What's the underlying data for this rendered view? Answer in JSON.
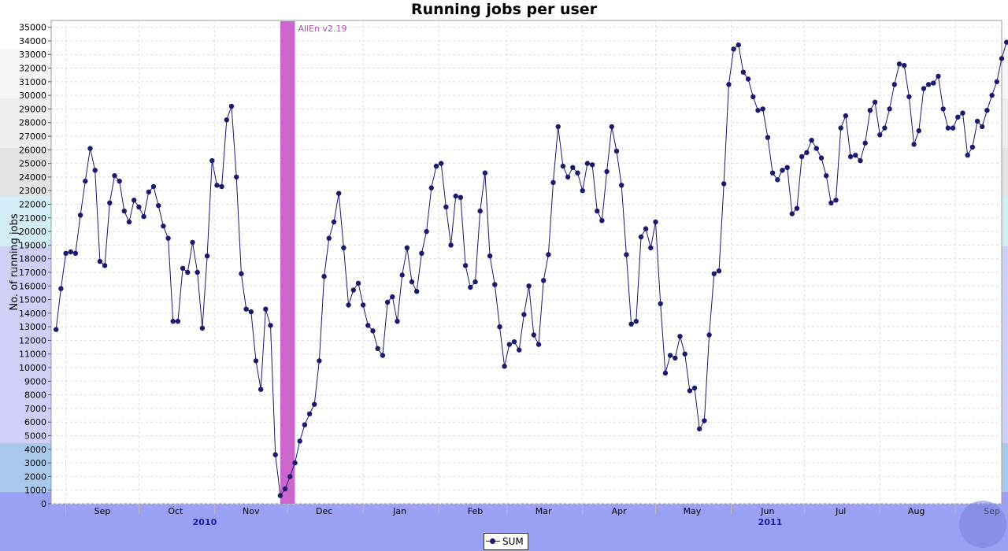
{
  "colors": {
    "series": "#1a1a6e",
    "annotation": "#cc66cc",
    "annotation_text": "#b04fb0",
    "year_label": "#1a1aa0",
    "grid": "#dddddd"
  },
  "chart_data": {
    "type": "line",
    "title": "Running jobs per user",
    "ylabel": "No. of running jobs",
    "xlabel": "",
    "ylim": [
      0,
      35500
    ],
    "xlim": [
      "2010-08-26",
      "2011-09-20"
    ],
    "y_ticks": [
      0,
      1000,
      2000,
      3000,
      4000,
      5000,
      6000,
      7000,
      8000,
      9000,
      10000,
      11000,
      12000,
      13000,
      14000,
      15000,
      16000,
      17000,
      18000,
      19000,
      20000,
      21000,
      22000,
      23000,
      24000,
      25000,
      26000,
      27000,
      28000,
      29000,
      30000,
      31000,
      32000,
      33000,
      34000,
      35000
    ],
    "x_tick_labels": [
      {
        "label": "Sep",
        "date": "2010-09-01"
      },
      {
        "label": "Oct",
        "date": "2010-10-01"
      },
      {
        "label": "Nov",
        "date": "2010-11-01"
      },
      {
        "label": "Dec",
        "date": "2010-12-01"
      },
      {
        "label": "Jan",
        "date": "2011-01-01"
      },
      {
        "label": "Feb",
        "date": "2011-02-01"
      },
      {
        "label": "Mar",
        "date": "2011-03-01"
      },
      {
        "label": "Apr",
        "date": "2011-04-01"
      },
      {
        "label": "May",
        "date": "2011-05-01"
      },
      {
        "label": "Jun",
        "date": "2011-06-01"
      },
      {
        "label": "Jul",
        "date": "2011-07-01"
      },
      {
        "label": "Aug",
        "date": "2011-08-01"
      },
      {
        "label": "Sep",
        "date": "2011-09-01"
      }
    ],
    "year_labels": [
      {
        "label": "2010",
        "date": "2010-10-28"
      },
      {
        "label": "2011",
        "date": "2011-06-17"
      }
    ],
    "annotations": [
      {
        "label": "AliEn v2.19",
        "from": "2010-11-28",
        "to": "2010-12-04"
      }
    ],
    "legend": {
      "position": "bottom-center",
      "entries": [
        "SUM"
      ]
    },
    "grid": true,
    "series": [
      {
        "name": "SUM",
        "start": "2010-08-28",
        "interval_days": 2,
        "values": [
          12800,
          15800,
          18400,
          18500,
          18400,
          21200,
          23700,
          26100,
          24500,
          17800,
          17500,
          22100,
          24100,
          23700,
          21500,
          20700,
          22300,
          21800,
          21100,
          22900,
          23300,
          21900,
          20400,
          19500,
          13400,
          13400,
          17300,
          17000,
          19200,
          17000,
          12900,
          18200,
          25200,
          23400,
          23300,
          28200,
          29200,
          24000,
          16900,
          14300,
          14100,
          10500,
          8400,
          14300,
          13100,
          3600,
          600,
          1100,
          2000,
          3000,
          4600,
          5800,
          6600,
          7300,
          10500,
          16700,
          19500,
          20700,
          22800,
          18800,
          14600,
          15700,
          16200,
          14600,
          13100,
          12700,
          11400,
          10900,
          14800,
          15200,
          13400,
          16800,
          18800,
          16300,
          15600,
          18400,
          20000,
          23200,
          24800,
          25000,
          21800,
          19000,
          22600,
          22500,
          17500,
          15900,
          16300,
          21500,
          24300,
          18200,
          16100,
          13000,
          10100,
          11700,
          11900,
          11300,
          13900,
          16000,
          12400,
          11700,
          16400,
          18300,
          23600,
          27700,
          24800,
          24000,
          24700,
          24300,
          23000,
          25000,
          24900,
          21500,
          20800,
          24400,
          27700,
          25900,
          23400,
          18300,
          13200,
          13400,
          19600,
          20200,
          18800,
          20700,
          14700,
          9600,
          10900,
          10700,
          12300,
          11000,
          8300,
          8500,
          5500,
          6100,
          12400,
          16900,
          17100,
          23500,
          30800,
          33400,
          33700,
          31700,
          31200,
          29900,
          28900,
          29000,
          26900,
          24300,
          23800,
          24500,
          24700,
          21300,
          21700,
          25500,
          25800,
          26700,
          26100,
          25400,
          24100,
          22100,
          22300,
          27600,
          28500,
          25500,
          25600,
          25200,
          26500,
          28900,
          29500,
          27100,
          27600,
          29000,
          30800,
          32300,
          32200,
          29900,
          26400,
          27400,
          30500,
          30800,
          30900,
          31400,
          29000,
          27600,
          27600,
          28400,
          28700,
          25600,
          26200,
          28100,
          27700,
          28900,
          30000,
          31000,
          32700,
          33900
        ]
      }
    ]
  }
}
